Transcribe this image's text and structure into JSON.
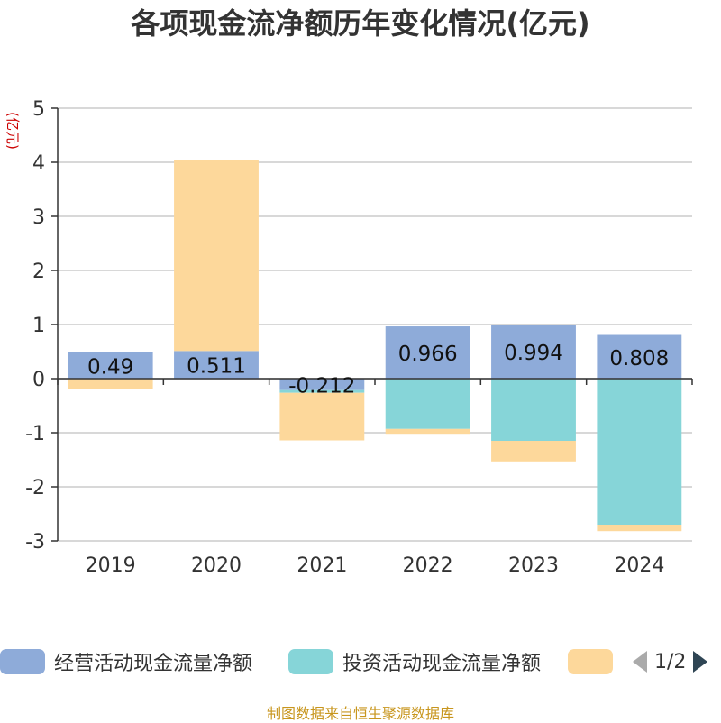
{
  "title": "各项现金流净额历年变化情况(亿元)",
  "source_note": "制图数据来自恒生聚源数据库",
  "pager": {
    "text": "1/2"
  },
  "colors": {
    "operating": "#8eabd9",
    "investing": "#86d5d8",
    "financing": "#fdd89b",
    "label_box": "#f5c842"
  },
  "chart_data": {
    "type": "bar",
    "stacked": true,
    "title": "各项现金流净额历年变化情况(亿元)",
    "ylabel": "(亿元)",
    "ylim": [
      -3,
      5
    ],
    "yticks": [
      "5",
      "4",
      "3",
      "2",
      "1",
      "0",
      "-1",
      "-2",
      "-3"
    ],
    "categories": [
      "2019",
      "2020",
      "2021",
      "2022",
      "2023",
      "2024"
    ],
    "grid": true,
    "legend_position": "bottom",
    "series": [
      {
        "name": "经营活动现金流量净额",
        "values": [
          0.49,
          0.511,
          -0.212,
          0.966,
          0.994,
          0.808
        ],
        "labels": [
          "0.49",
          "0.511",
          "-0.212",
          "0.966",
          "0.994",
          "0.808"
        ]
      },
      {
        "name": "投资活动现金流量净额",
        "values": [
          0.0,
          0.0,
          -0.05,
          -0.93,
          -1.15,
          -2.7
        ]
      },
      {
        "name": "",
        "values": [
          -0.2,
          3.53,
          -0.88,
          -0.09,
          -0.38,
          -0.12
        ]
      }
    ]
  }
}
